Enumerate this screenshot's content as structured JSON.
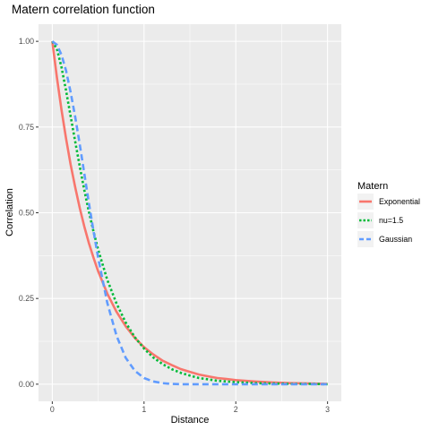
{
  "chart_data": {
    "type": "line",
    "title": "Matern correlation function",
    "xlabel": "Distance",
    "ylabel": "Correlation",
    "xlim": [
      -0.15,
      3.15
    ],
    "ylim": [
      -0.05,
      1.05
    ],
    "x_ticks": [
      0,
      1,
      2,
      3
    ],
    "x_tick_labels": [
      "0",
      "1",
      "2",
      "3"
    ],
    "y_ticks": [
      0,
      0.25,
      0.5,
      0.75,
      1
    ],
    "y_tick_labels": [
      "0.00",
      "0.25",
      "0.50",
      "0.75",
      "1.00"
    ],
    "grid": true,
    "legend": {
      "title": "Matern",
      "placement": "right"
    },
    "x": [
      0,
      0.05,
      0.1,
      0.15,
      0.2,
      0.25,
      0.3,
      0.35,
      0.4,
      0.45,
      0.5,
      0.6,
      0.7,
      0.8,
      0.9,
      1.0,
      1.1,
      1.2,
      1.3,
      1.4,
      1.5,
      1.6,
      1.7,
      1.8,
      1.9,
      2.0,
      2.2,
      2.4,
      2.6,
      2.8,
      3.0
    ],
    "series": [
      {
        "name": "Exponential",
        "color": "#F8766D",
        "dash": "solid",
        "values": [
          1.0,
          0.895,
          0.801,
          0.717,
          0.641,
          0.574,
          0.513,
          0.459,
          0.411,
          0.368,
          0.329,
          0.264,
          0.211,
          0.169,
          0.135,
          0.108,
          0.087,
          0.069,
          0.056,
          0.044,
          0.036,
          0.028,
          0.023,
          0.018,
          0.015,
          0.012,
          0.008,
          0.005,
          0.003,
          0.002,
          0.001
        ]
      },
      {
        "name": "nu=1.5",
        "color": "#00BA38",
        "dash": "dotted",
        "values": [
          1.0,
          0.978,
          0.925,
          0.857,
          0.782,
          0.707,
          0.634,
          0.565,
          0.502,
          0.444,
          0.392,
          0.304,
          0.235,
          0.18,
          0.137,
          0.104,
          0.078,
          0.059,
          0.044,
          0.033,
          0.025,
          0.018,
          0.014,
          0.01,
          0.008,
          0.006,
          0.003,
          0.002,
          0.001,
          0.001,
          0.0
        ]
      },
      {
        "name": "Gaussian",
        "color": "#619CFF",
        "dash": "dashed",
        "values": [
          1.0,
          0.99,
          0.961,
          0.915,
          0.852,
          0.779,
          0.698,
          0.613,
          0.527,
          0.445,
          0.368,
          0.237,
          0.141,
          0.077,
          0.039,
          0.018,
          0.008,
          0.003,
          0.001,
          0.0,
          0.0,
          0.0,
          0.0,
          0.0,
          0.0,
          0.0,
          0.0,
          0.0,
          0.0,
          0.0,
          0.0
        ]
      }
    ]
  }
}
